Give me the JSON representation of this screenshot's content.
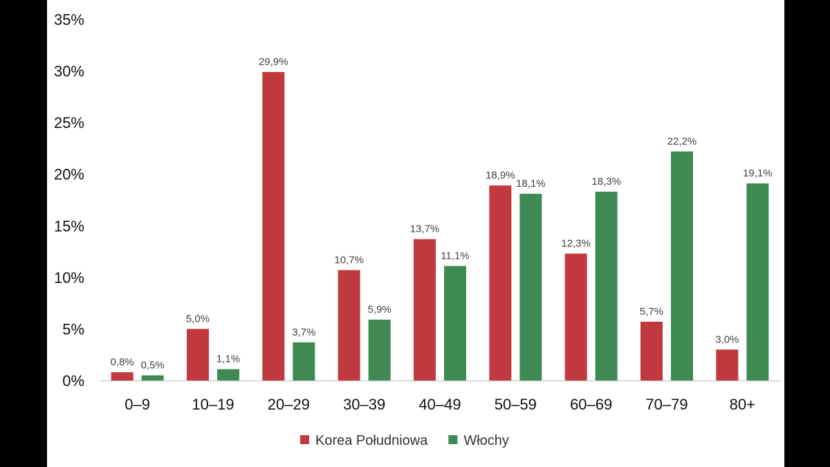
{
  "chart_data": {
    "type": "bar",
    "title": "",
    "xlabel": "",
    "ylabel": "",
    "ylim": [
      0,
      35
    ],
    "yticks": [
      0,
      5,
      10,
      15,
      20,
      25,
      30,
      35
    ],
    "ytick_labels": [
      "0%",
      "5%",
      "10%",
      "15%",
      "20%",
      "25%",
      "30%",
      "35%"
    ],
    "grid": false,
    "legend_position": "bottom",
    "categories": [
      "0–9",
      "10–19",
      "20–29",
      "30–39",
      "40–49",
      "50–59",
      "60–69",
      "70–79",
      "80+"
    ],
    "series": [
      {
        "name": "Korea Południowa",
        "color": "#c0393f",
        "values": [
          0.8,
          5.0,
          29.9,
          10.7,
          13.7,
          18.9,
          12.3,
          5.7,
          3.0
        ],
        "labels": [
          "0,8%",
          "5,0%",
          "29,9%",
          "10,7%",
          "13,7%",
          "18,9%",
          "12,3%",
          "5,7%",
          "3,0%"
        ]
      },
      {
        "name": "Włochy",
        "color": "#3e8a52",
        "values": [
          0.5,
          1.1,
          3.7,
          5.9,
          11.1,
          18.1,
          18.3,
          22.2,
          19.1
        ],
        "labels": [
          "0,5%",
          "1,1%",
          "3,7%",
          "5,9%",
          "11,1%",
          "18,1%",
          "18,3%",
          "22,2%",
          "19,1%"
        ]
      }
    ]
  }
}
